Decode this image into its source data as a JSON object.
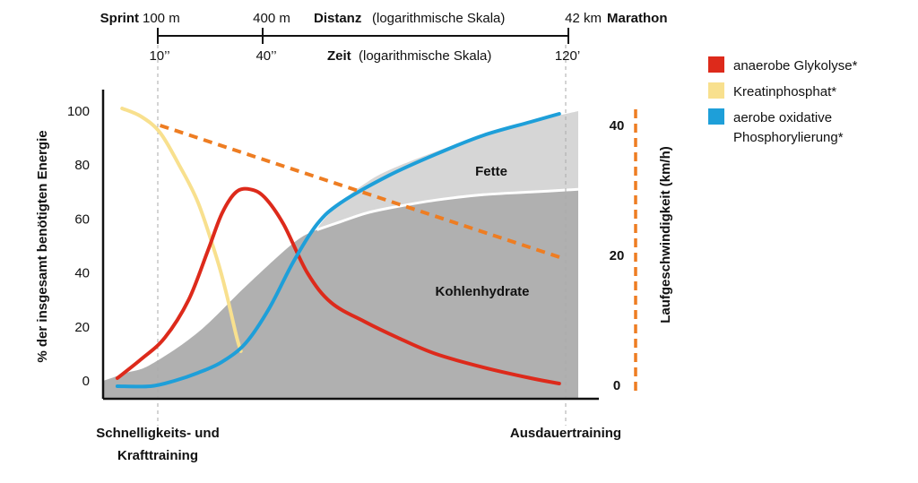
{
  "chart_data": {
    "type": "line",
    "top_axis": {
      "distance": {
        "left_label": "Sprint",
        "left_value": "100 m",
        "mid_value": "400 m",
        "title_bold": "Distanz",
        "title_rest": "(logarithmische Skala)",
        "right_value": "42 km",
        "right_label": "Marathon"
      },
      "time": {
        "ticks": [
          "10’’",
          "40’’",
          "120’"
        ],
        "title_bold": "Zeit",
        "title_rest": "(logarithmische Skala)"
      }
    },
    "x": {
      "left_label_line1": "Schnelligkeits- und",
      "left_label_line2": "Krafttraining",
      "right_label": "Ausdauertraining",
      "domain": [
        0,
        100
      ]
    },
    "y_left": {
      "label": "% der insgesamt benötigten Energie",
      "ticks": [
        "0",
        "20",
        "40",
        "60",
        "80",
        "100"
      ],
      "ylim": [
        0,
        100
      ]
    },
    "y_right": {
      "label": "Laufgeschwindigkeit (km/h)",
      "ticks": [
        "0",
        "20",
        "40"
      ],
      "ylim": [
        0,
        40
      ],
      "color": "#ee7d22"
    },
    "areas": [
      {
        "name": "Kohlenhydrate",
        "color": "#b0b0b0",
        "label_at": [
          67,
          33
        ],
        "x": [
          0,
          5,
          10,
          20,
          30,
          40,
          45,
          50,
          55,
          60,
          70,
          80,
          90,
          100
        ],
        "y": [
          0,
          3,
          6,
          18,
          35,
          51,
          56,
          59,
          62,
          64,
          67,
          69,
          70,
          71
        ]
      },
      {
        "name": "Fette",
        "color": "#d6d6d6",
        "label_at": [
          76,
          80
        ],
        "x": [
          43,
          45,
          50,
          55,
          60,
          70,
          80,
          90,
          100
        ],
        "y": [
          43,
          56,
          66,
          73,
          78,
          85,
          91,
          96,
          100
        ]
      }
    ],
    "series": [
      {
        "name": "anaerobe Glykolyse*",
        "color": "#dd2a1b",
        "x": [
          3,
          8,
          13,
          18,
          22,
          25,
          28,
          31,
          34,
          38,
          43,
          48,
          55,
          62,
          70,
          80,
          90,
          96
        ],
        "y": [
          1,
          8,
          16,
          30,
          48,
          62,
          70,
          71,
          68,
          58,
          40,
          29,
          22,
          16,
          10,
          5,
          1,
          -1
        ]
      },
      {
        "name": "Kreatinphosphat*",
        "color": "#f8e08e",
        "x": [
          4,
          8,
          12,
          16,
          20,
          24,
          26,
          28,
          29
        ],
        "y": [
          101,
          98,
          92,
          80,
          66,
          45,
          32,
          17,
          11
        ]
      },
      {
        "name": "aerobe oxidative Phosphorylierung*",
        "color": "#1e9fd9",
        "x": [
          3,
          10,
          15,
          20,
          25,
          30,
          35,
          40,
          45,
          50,
          60,
          70,
          80,
          90,
          96
        ],
        "y": [
          -2,
          -2,
          0,
          3,
          7,
          14,
          27,
          44,
          58,
          66,
          76,
          84,
          91,
          96,
          99
        ]
      }
    ],
    "speed_line": {
      "x": [
        12,
        97
      ],
      "y": [
        40,
        19.5
      ],
      "color": "#ee7d22",
      "dash": true
    },
    "area_labels": {
      "fette": "Fette",
      "kohlenhydrate": "Kohlenhydrate"
    },
    "legend": {
      "position": "top-right"
    },
    "grid": false
  }
}
